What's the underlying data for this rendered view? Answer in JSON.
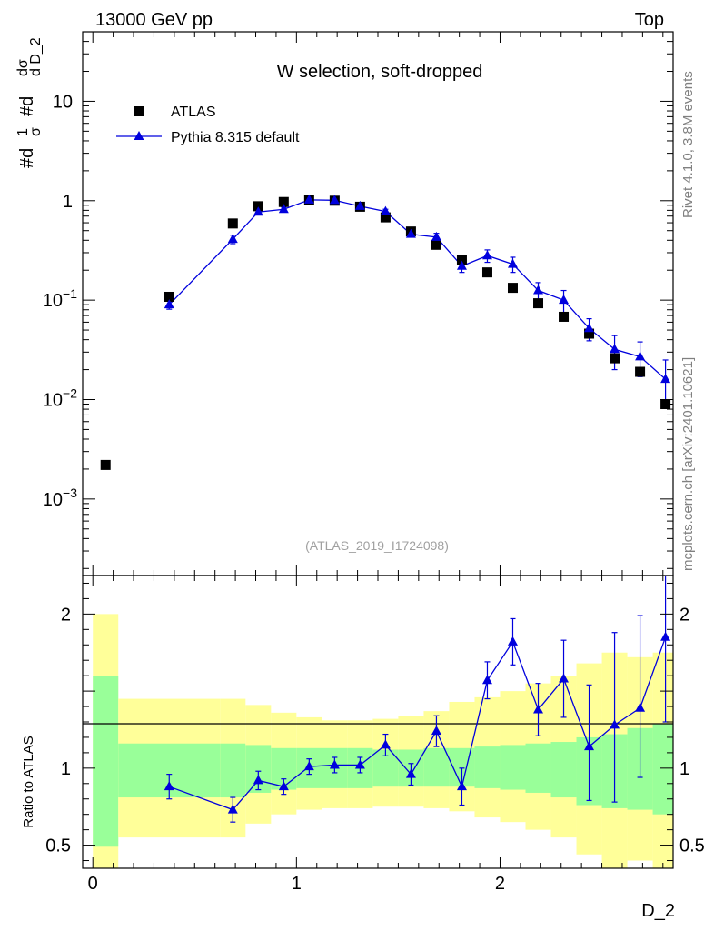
{
  "header": {
    "energy_label": "13000 GeV pp",
    "process_label": "Top"
  },
  "side": {
    "rivet_label": "Rivet 4.1.0,  3.8M events",
    "mcplots_label": "mcplots.cern.ch [arXiv:2401.10621]"
  },
  "chart_data": {
    "type": "scatter",
    "title": "W selection, soft-dropped",
    "analysis_id": "(ATLAS_2019_I1724098)",
    "xlabel": "D_2",
    "ylabel_main": {
      "hash1": "#",
      "d1": "d",
      "one": "1",
      "sigma": "σ",
      "hash2": "#",
      "d2": "d",
      "dsigma": "dσ",
      "dvar": "d D_2"
    },
    "ylabel_ratio": "Ratio to ATLAS",
    "xlim": [
      -0.05,
      2.85
    ],
    "ylim_main": [
      0.00017,
      50
    ],
    "ylim_ratio": [
      0.35,
      2.25
    ],
    "x_ticks": [
      {
        "v": 0,
        "label": "0"
      },
      {
        "v": 1,
        "label": "1"
      },
      {
        "v": 2,
        "label": "2"
      }
    ],
    "y_ticks_main": [
      {
        "v": 10,
        "base": "10",
        "exp": ""
      },
      {
        "v": 1,
        "base": "1",
        "exp": ""
      },
      {
        "v": 0.1,
        "base": "10",
        "exp": "−1"
      },
      {
        "v": 0.01,
        "base": "10",
        "exp": "−2"
      },
      {
        "v": 0.001,
        "base": "10",
        "exp": "−3"
      }
    ],
    "y_ticks_ratio": [
      {
        "v": 2,
        "label": "2"
      },
      {
        "v": 1,
        "label": "1"
      },
      {
        "v": 0.5,
        "label": "0.5"
      }
    ],
    "legend": [
      {
        "name": "ATLAS",
        "marker": "square",
        "color": "#000000"
      },
      {
        "name": "Pythia 8.315 default",
        "marker": "triangle",
        "color": "#0000dd"
      }
    ],
    "atlas": {
      "x": [
        0.0625,
        0.375,
        0.6875,
        0.8125,
        0.9375,
        1.0625,
        1.1875,
        1.3125,
        1.4375,
        1.5625,
        1.6875,
        1.8125,
        1.9375,
        2.0625,
        2.1875,
        2.3125,
        2.4375,
        2.5625,
        2.6875,
        2.8125
      ],
      "y": [
        0.0022,
        0.108,
        0.59,
        0.88,
        0.97,
        1.02,
        1.0,
        0.87,
        0.68,
        0.49,
        0.36,
        0.255,
        0.19,
        0.133,
        0.093,
        0.068,
        0.046,
        0.026,
        0.019,
        0.009
      ]
    },
    "pythia": {
      "x": [
        0.375,
        0.6875,
        0.8125,
        0.9375,
        1.0625,
        1.1875,
        1.3125,
        1.4375,
        1.5625,
        1.6875,
        1.8125,
        1.9375,
        2.0625,
        2.1875,
        2.3125,
        2.4375,
        2.5625,
        2.6875,
        2.8125
      ],
      "y": [
        0.09,
        0.41,
        0.77,
        0.82,
        1.02,
        1.01,
        0.88,
        0.78,
        0.46,
        0.43,
        0.22,
        0.28,
        0.23,
        0.125,
        0.1,
        0.052,
        0.032,
        0.027,
        0.016
      ],
      "err_lo": [
        0.009,
        0.04,
        0.05,
        0.04,
        0.03,
        0.03,
        0.03,
        0.04,
        0.03,
        0.04,
        0.03,
        0.04,
        0.04,
        0.025,
        0.025,
        0.013,
        0.012,
        0.01,
        0.007
      ],
      "err_hi": [
        0.009,
        0.04,
        0.05,
        0.04,
        0.03,
        0.03,
        0.03,
        0.04,
        0.03,
        0.04,
        0.03,
        0.04,
        0.04,
        0.025,
        0.025,
        0.013,
        0.012,
        0.011,
        0.009
      ]
    },
    "ratio": {
      "x": [
        0.375,
        0.6875,
        0.8125,
        0.9375,
        1.0625,
        1.1875,
        1.3125,
        1.4375,
        1.5625,
        1.6875,
        1.8125,
        1.9375,
        2.0625,
        2.1875,
        2.3125,
        2.4375,
        2.5625,
        2.6875,
        2.8125
      ],
      "y": [
        0.88,
        0.73,
        0.92,
        0.88,
        1.01,
        1.02,
        1.02,
        1.15,
        0.96,
        1.24,
        0.88,
        1.57,
        1.82,
        1.38,
        1.58,
        1.14,
        1.28,
        1.39,
        1.85
      ],
      "err_lo": [
        0.08,
        0.08,
        0.06,
        0.05,
        0.05,
        0.05,
        0.05,
        0.07,
        0.07,
        0.1,
        0.12,
        0.12,
        0.15,
        0.17,
        0.25,
        0.35,
        0.5,
        0.45,
        0.55
      ],
      "err_hi": [
        0.08,
        0.08,
        0.06,
        0.05,
        0.05,
        0.05,
        0.05,
        0.07,
        0.07,
        0.1,
        0.12,
        0.12,
        0.15,
        0.17,
        0.25,
        0.4,
        0.6,
        0.6,
        0.8
      ]
    },
    "bands": {
      "edges": [
        0,
        0.125,
        0.625,
        0.75,
        0.875,
        1.0,
        1.125,
        1.25,
        1.375,
        1.5,
        1.625,
        1.75,
        1.875,
        2.0,
        2.125,
        2.25,
        2.375,
        2.5,
        2.625,
        2.75,
        2.875
      ],
      "green_lo": [
        0.49,
        0.81,
        0.81,
        0.84,
        0.86,
        0.87,
        0.87,
        0.87,
        0.88,
        0.88,
        0.88,
        0.88,
        0.87,
        0.86,
        0.84,
        0.81,
        0.76,
        0.74,
        0.73,
        0.7
      ],
      "green_hi": [
        1.6,
        1.16,
        1.16,
        1.15,
        1.13,
        1.13,
        1.13,
        1.13,
        1.12,
        1.12,
        1.13,
        1.13,
        1.14,
        1.15,
        1.16,
        1.17,
        1.2,
        1.22,
        1.26,
        1.29
      ],
      "yellow_lo": [
        0.35,
        0.55,
        0.55,
        0.64,
        0.7,
        0.73,
        0.74,
        0.74,
        0.75,
        0.75,
        0.74,
        0.72,
        0.68,
        0.65,
        0.6,
        0.55,
        0.44,
        0.35,
        0.4,
        0.35
      ],
      "yellow_hi": [
        2.0,
        1.45,
        1.45,
        1.41,
        1.36,
        1.33,
        1.31,
        1.31,
        1.32,
        1.34,
        1.37,
        1.43,
        1.46,
        1.5,
        1.55,
        1.6,
        1.68,
        1.75,
        1.72,
        1.75
      ]
    }
  }
}
